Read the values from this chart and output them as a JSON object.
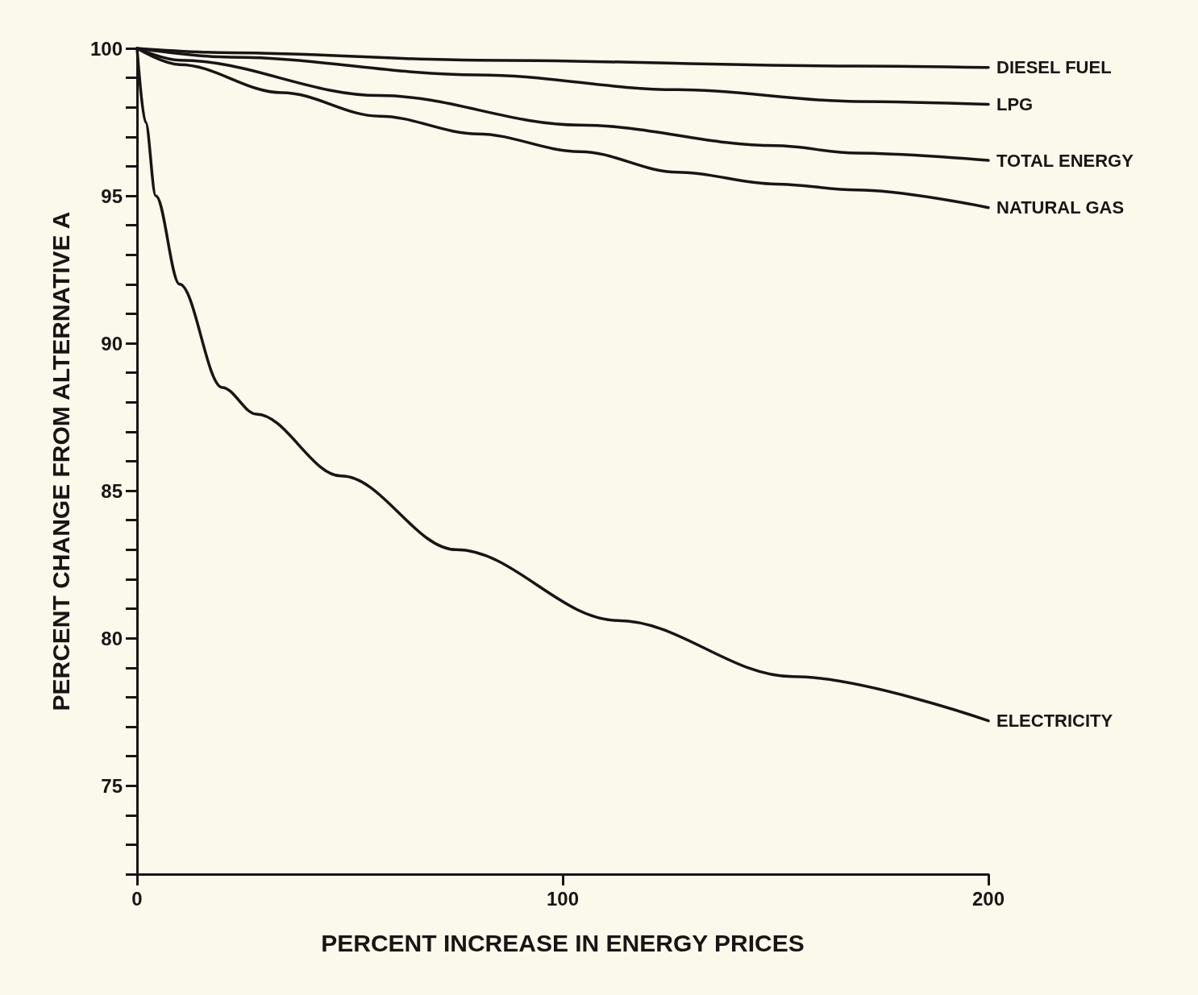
{
  "chart_data": {
    "type": "line",
    "xlabel": "PERCENT INCREASE IN ENERGY PRICES",
    "ylabel": "PERCENT CHANGE FROM ALTERNATIVE A",
    "xlim": [
      0,
      200
    ],
    "xticks": [
      0,
      100,
      200
    ],
    "ylim": [
      72,
      100
    ],
    "yticks": [
      {
        "value": 72,
        "label": null
      },
      {
        "value": 73,
        "label": null
      },
      {
        "value": 74,
        "label": null
      },
      75,
      {
        "value": 76,
        "label": null
      },
      {
        "value": 77,
        "label": null
      },
      {
        "value": 78,
        "label": null
      },
      {
        "value": 79,
        "label": null
      },
      80,
      {
        "value": 81,
        "label": null
      },
      {
        "value": 82,
        "label": null
      },
      {
        "value": 83,
        "label": null
      },
      {
        "value": 84,
        "label": null
      },
      85,
      {
        "value": 86,
        "label": null
      },
      {
        "value": 87,
        "label": null
      },
      {
        "value": 88,
        "label": null
      },
      {
        "value": 89,
        "label": null
      },
      90,
      {
        "value": 91,
        "label": null
      },
      {
        "value": 92,
        "label": null
      },
      {
        "value": 93,
        "label": null
      },
      {
        "value": 94,
        "label": null
      },
      95,
      {
        "value": 96,
        "label": null
      },
      {
        "value": 97,
        "label": null
      },
      {
        "value": 98,
        "label": null
      },
      {
        "value": 99,
        "label": null
      },
      100
    ],
    "grid": false,
    "legend": false,
    "marker": "none",
    "line_style": "solid",
    "series": [
      {
        "name": "DIESEL FUEL",
        "color": "#1a1414",
        "x": [
          0,
          22,
          80,
          169,
          200
        ],
        "values": [
          100,
          99.85,
          99.6,
          99.4,
          99.35
        ]
      },
      {
        "name": "LPG",
        "color": "#1a1414",
        "x": [
          0,
          22,
          80,
          127,
          169,
          200
        ],
        "values": [
          100,
          99.7,
          99.1,
          98.6,
          98.2,
          98.1
        ]
      },
      {
        "name": "TOTAL ENERGY",
        "color": "#1a1414",
        "x": [
          0,
          10,
          57,
          104,
          150,
          169,
          200
        ],
        "values": [
          100,
          99.6,
          98.4,
          97.4,
          96.7,
          96.45,
          96.2
        ]
      },
      {
        "name": "NATURAL GAS",
        "color": "#1a1414",
        "x": [
          0,
          10,
          34,
          57,
          80,
          104,
          127,
          150,
          169,
          200
        ],
        "values": [
          100,
          99.45,
          98.5,
          97.7,
          97.1,
          96.5,
          95.8,
          95.4,
          95.2,
          94.6
        ]
      },
      {
        "name": "ELECTRICITY",
        "color": "#1a1414",
        "x": [
          0,
          2,
          4.4,
          10,
          20,
          28,
          48,
          75,
          113,
          154,
          200
        ],
        "values": [
          100,
          97.5,
          95,
          92,
          88.5,
          87.6,
          85.5,
          83,
          80.6,
          78.7,
          77.2
        ]
      }
    ]
  }
}
